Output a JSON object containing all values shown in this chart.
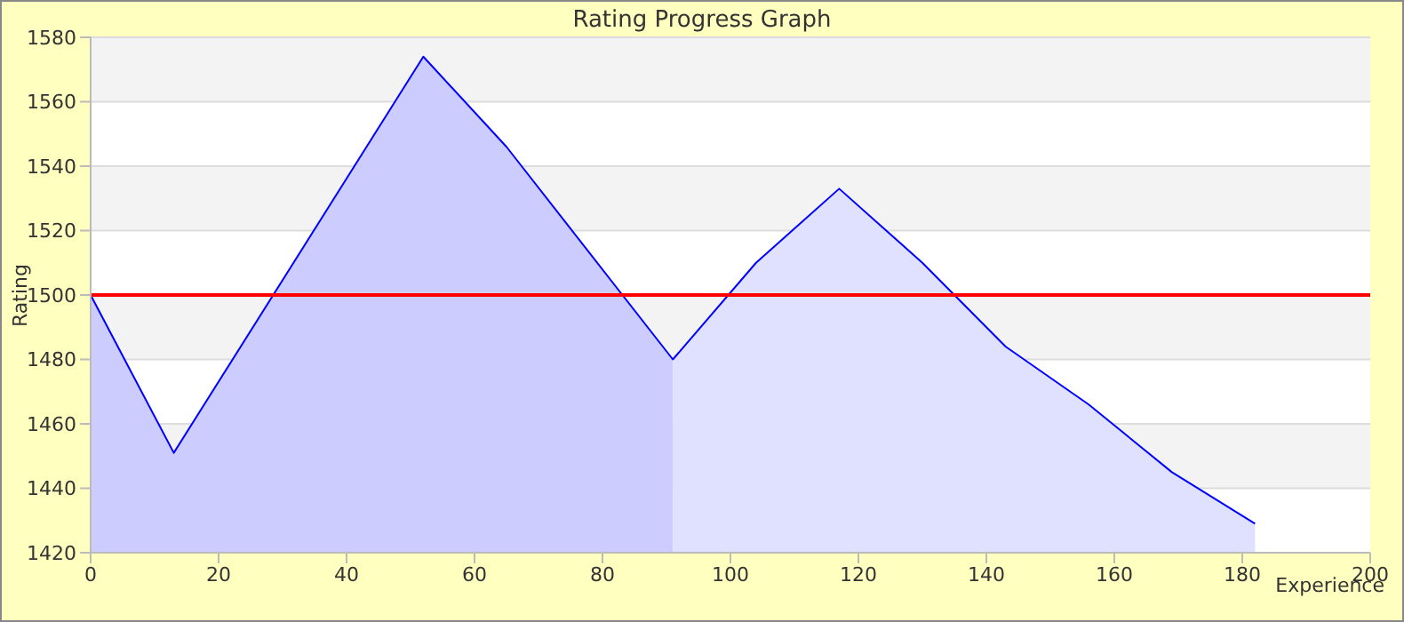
{
  "chart_data": {
    "type": "area",
    "title": "Rating Progress Graph",
    "xlabel": "Experience",
    "ylabel": "Rating",
    "series": [
      {
        "color": "#ccccff",
        "x": [
          0,
          13,
          52,
          65,
          91
        ],
        "values": [
          1500,
          1451,
          1574,
          1546,
          1480
        ]
      },
      {
        "color": "#e0e0ff",
        "x": [
          91,
          104,
          117,
          130,
          143,
          156,
          169,
          182
        ],
        "values": [
          1480,
          1510,
          1533,
          1510,
          1484,
          1466,
          1445,
          1429
        ]
      },
      {
        "type": "line",
        "color": "#0000ff",
        "x": [
          0,
          13,
          52,
          65,
          91,
          104,
          117,
          130,
          143,
          156,
          169,
          182
        ],
        "values": [
          1500,
          1451,
          1574,
          1546,
          1480,
          1510,
          1533,
          1510,
          1484,
          1466,
          1445,
          1429
        ]
      }
    ],
    "xlim": [
      0,
      200
    ],
    "xticks": [
      0,
      20,
      40,
      60,
      80,
      100,
      120,
      140,
      160,
      180,
      200
    ],
    "ylim": [
      1420,
      1580
    ],
    "yticks": [
      1420,
      1440,
      1460,
      1480,
      1500,
      1520,
      1540,
      1560,
      1580
    ],
    "ref_lines": [
      {
        "axis": "y",
        "value": 1500,
        "color": "#ff0000"
      }
    ],
    "grid": "y",
    "legend": false
  }
}
